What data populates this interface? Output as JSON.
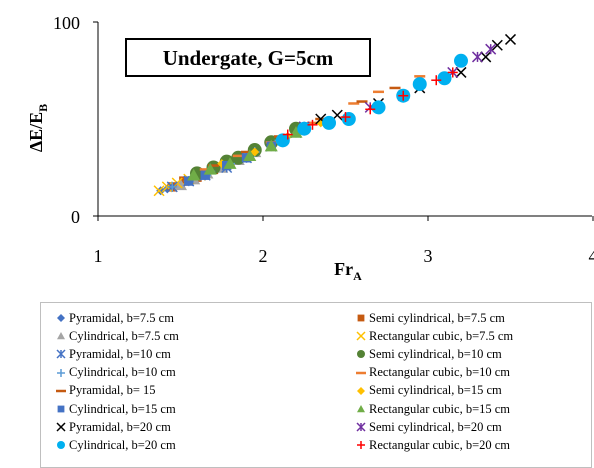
{
  "chart_data": {
    "type": "scatter",
    "annotation": "Undergate, G=5cm",
    "xlabel": "Fr",
    "xlabel_sub": "A",
    "ylabel": "ΔE/E",
    "ylabel_sub": "B",
    "xlim": [
      1,
      4
    ],
    "ylim": [
      0,
      100
    ],
    "x_ticks": [
      "1",
      "2",
      "3",
      "4"
    ],
    "y_ticks": [
      "0",
      "100"
    ],
    "grid": false,
    "legend_position": "bottom",
    "series": [
      {
        "name": "Pyramidal, b=7.5 cm",
        "marker": "diamond",
        "color": "#4472c4",
        "x": [
          1.38,
          1.42,
          1.46,
          1.5,
          1.55,
          1.6
        ],
        "y": [
          13,
          14,
          15,
          16,
          18,
          19
        ]
      },
      {
        "name": "Semi cylindrical, b=7.5 cm",
        "marker": "square",
        "color": "#c55a11",
        "x": [
          1.45,
          1.52,
          1.6,
          1.7,
          1.8,
          1.95,
          2.05
        ],
        "y": [
          15,
          18,
          20,
          24,
          28,
          33,
          38
        ]
      },
      {
        "name": "Cylindrical, b=7.5 cm",
        "marker": "triangle",
        "color": "#a5a5a5",
        "x": [
          1.5,
          1.58,
          1.66,
          1.75,
          1.85,
          1.95
        ],
        "y": [
          16,
          19,
          22,
          25,
          29,
          33
        ]
      },
      {
        "name": "Rectangular cubic, b=7.5 cm",
        "marker": "x",
        "color": "#ffc000",
        "x": [
          1.37,
          1.42,
          1.48,
          1.55,
          1.62
        ],
        "y": [
          13,
          15,
          17,
          19,
          21
        ]
      },
      {
        "name": "Pyramidal, b=10 cm",
        "marker": "star",
        "color": "#4472c4",
        "x": [
          1.45,
          1.55,
          1.65,
          1.78,
          1.9,
          2.05,
          2.2
        ],
        "y": [
          15,
          18,
          21,
          25,
          30,
          36,
          43
        ]
      },
      {
        "name": "Semi cylindrical, b=10 cm",
        "marker": "circle",
        "color": "#548235",
        "x": [
          1.6,
          1.7,
          1.78,
          1.85,
          1.95,
          2.05,
          2.2
        ],
        "y": [
          22,
          25,
          28,
          30,
          34,
          38,
          45
        ]
      },
      {
        "name": "Cylindrical, b=10 cm",
        "marker": "plus",
        "color": "#5b9bd5",
        "x": [
          1.45,
          1.55,
          1.68,
          1.8,
          1.95,
          2.1
        ],
        "y": [
          15,
          18,
          23,
          27,
          33,
          39
        ]
      },
      {
        "name": "Rectangular cubic, b=10 cm",
        "marker": "dash",
        "color": "#ed7d31",
        "x": [
          1.65,
          1.85,
          2.05,
          2.3,
          2.55,
          2.7,
          2.95
        ],
        "y": [
          24,
          31,
          38,
          48,
          58,
          64,
          72
        ]
      },
      {
        "name": "Pyramidal, b= 15",
        "marker": "dash",
        "color": "#c55a11",
        "x": [
          1.7,
          1.9,
          2.1,
          2.35,
          2.6,
          2.8
        ],
        "y": [
          26,
          33,
          41,
          50,
          59,
          66
        ]
      },
      {
        "name": "Semi cylindrical, b=15 cm",
        "marker": "diamond",
        "color": "#ffc000",
        "x": [
          1.75,
          1.95,
          2.15,
          2.35
        ],
        "y": [
          27,
          33,
          41,
          48
        ]
      },
      {
        "name": "Cylindrical, b=15 cm",
        "marker": "square",
        "color": "#4472c4",
        "x": [
          1.55,
          1.65,
          1.78,
          1.9,
          2.05
        ],
        "y": [
          18,
          21,
          26,
          30,
          36
        ]
      },
      {
        "name": "Rectangular cubic, b=15 cm",
        "marker": "triangle",
        "color": "#70ad47",
        "x": [
          1.58,
          1.68,
          1.8,
          1.92,
          2.05,
          2.2
        ],
        "y": [
          21,
          24,
          27,
          31,
          36,
          43
        ]
      },
      {
        "name": "Pyramidal, b=20 cm",
        "marker": "x",
        "color": "#000000",
        "x": [
          2.35,
          2.45,
          2.7,
          2.95,
          3.2,
          3.35,
          3.42,
          3.5
        ],
        "y": [
          50,
          52,
          58,
          66,
          74,
          82,
          88,
          91
        ]
      },
      {
        "name": "Semi cylindrical, b=20 cm",
        "marker": "star",
        "color": "#7030a0",
        "x": [
          2.25,
          2.65,
          2.85,
          3.15,
          3.3,
          3.38
        ],
        "y": [
          46,
          56,
          62,
          74,
          82,
          86
        ]
      },
      {
        "name": "Cylindrical, b=20 cm",
        "marker": "circle",
        "color": "#00b0f0",
        "x": [
          2.12,
          2.25,
          2.4,
          2.52,
          2.7,
          2.85,
          2.95,
          3.1,
          3.2
        ],
        "y": [
          39,
          45,
          48,
          50,
          56,
          62,
          68,
          71,
          80
        ]
      },
      {
        "name": "Rectangular cubic, b=20 cm",
        "marker": "plus",
        "color": "#ff0000",
        "x": [
          2.15,
          2.3,
          2.5,
          2.65,
          2.85,
          3.05,
          3.15
        ],
        "y": [
          42,
          47,
          51,
          55,
          62,
          70,
          74
        ]
      }
    ]
  }
}
